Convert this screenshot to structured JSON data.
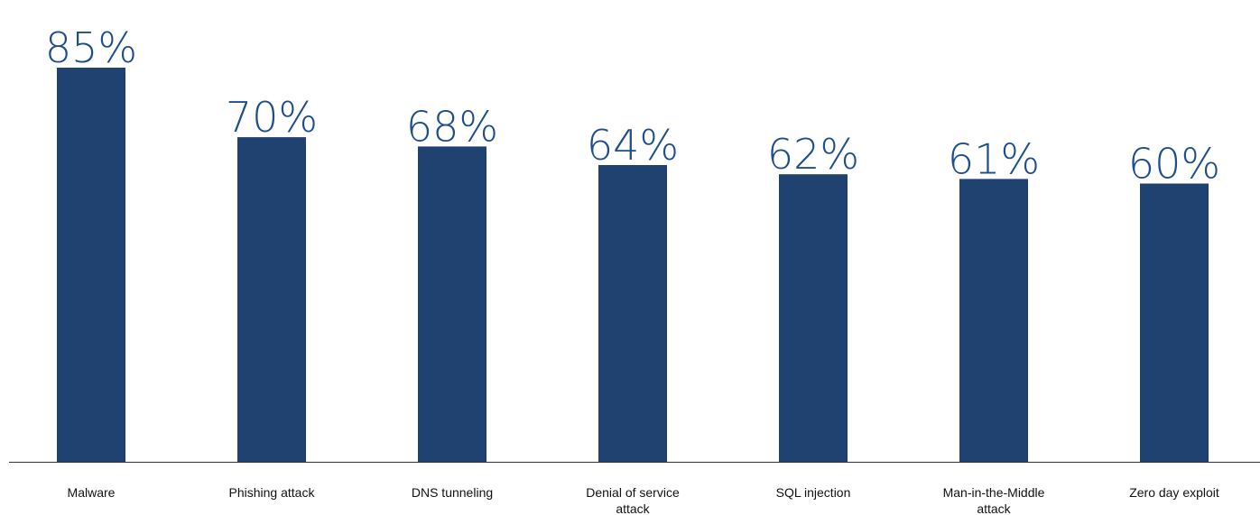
{
  "chart_data": {
    "type": "bar",
    "categories": [
      "Malware",
      "Phishing attack",
      "DNS tunneling",
      "Denial of service attack",
      "SQL injection",
      "Man-in-the-Middle attack",
      "Zero day exploit"
    ],
    "category_label_lines": [
      [
        "Malware"
      ],
      [
        "Phishing attack"
      ],
      [
        "DNS tunneling"
      ],
      [
        "Denial of service",
        "attack"
      ],
      [
        "SQL injection"
      ],
      [
        "Man-in-the-Middle",
        "attack"
      ],
      [
        "Zero day exploit"
      ]
    ],
    "values": [
      85,
      70,
      68,
      64,
      62,
      61,
      60
    ],
    "value_labels": [
      "85%",
      "70%",
      "68%",
      "64%",
      "62%",
      "61%",
      "60%"
    ],
    "unit": "%",
    "title": "",
    "xlabel": "",
    "ylabel": "",
    "ylim": [
      0,
      85
    ],
    "grid": false,
    "legend": "none",
    "bar_color": "#1f4270",
    "label_color": "#1e4d8c"
  }
}
